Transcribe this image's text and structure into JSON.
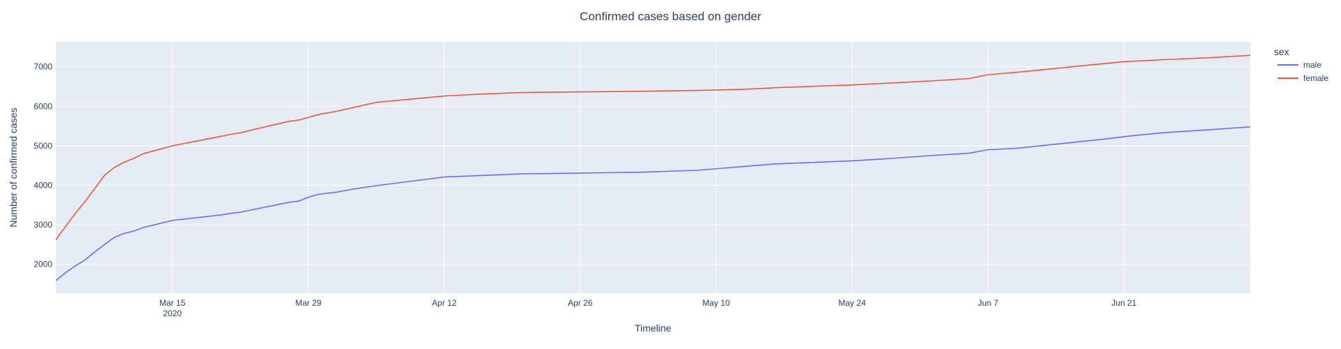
{
  "colors": {
    "plot_bg": "#e5ecf6",
    "grid": "#ffffff",
    "text": "#2a3f5f",
    "male": "#636efa",
    "female": "#ef553b"
  },
  "chart_data": {
    "type": "line",
    "title": "Confirmed cases based on gender",
    "xlabel": "Timeline",
    "ylabel": "Number of confirmed cases",
    "x_axis": {
      "type": "date",
      "range": [
        "2020-03-03",
        "2020-07-04"
      ],
      "ticks": [
        {
          "date": "2020-03-15",
          "label": "Mar 15",
          "sublabel": "2020"
        },
        {
          "date": "2020-03-29",
          "label": "Mar 29",
          "sublabel": ""
        },
        {
          "date": "2020-04-12",
          "label": "Apr 12",
          "sublabel": ""
        },
        {
          "date": "2020-04-26",
          "label": "Apr 26",
          "sublabel": ""
        },
        {
          "date": "2020-05-10",
          "label": "May 10",
          "sublabel": ""
        },
        {
          "date": "2020-05-24",
          "label": "May 24",
          "sublabel": ""
        },
        {
          "date": "2020-06-07",
          "label": "Jun 7",
          "sublabel": ""
        },
        {
          "date": "2020-06-21",
          "label": "Jun 21",
          "sublabel": ""
        }
      ]
    },
    "y_axis": {
      "range": [
        1270,
        7630
      ],
      "ticks": [
        {
          "value": 2000,
          "label": "2000"
        },
        {
          "value": 3000,
          "label": "3000"
        },
        {
          "value": 4000,
          "label": "4000"
        },
        {
          "value": 5000,
          "label": "5000"
        },
        {
          "value": 6000,
          "label": "6000"
        },
        {
          "value": 7000,
          "label": "7000"
        }
      ]
    },
    "grid": true,
    "legend": {
      "title": "sex",
      "position": "top-right"
    },
    "series": [
      {
        "name": "male",
        "x": [
          "2020-03-03",
          "2020-03-04",
          "2020-03-05",
          "2020-03-06",
          "2020-03-07",
          "2020-03-08",
          "2020-03-09",
          "2020-03-10",
          "2020-03-11",
          "2020-03-12",
          "2020-03-15",
          "2020-03-20",
          "2020-03-21",
          "2020-03-22",
          "2020-03-23",
          "2020-03-27",
          "2020-03-28",
          "2020-03-29",
          "2020-03-30",
          "2020-04-01",
          "2020-04-03",
          "2020-04-05",
          "2020-04-12",
          "2020-04-16",
          "2020-04-20",
          "2020-05-02",
          "2020-05-08",
          "2020-05-13",
          "2020-05-16",
          "2020-05-24",
          "2020-05-28",
          "2020-06-01",
          "2020-06-05",
          "2020-06-07",
          "2020-06-10",
          "2020-06-14",
          "2020-06-19",
          "2020-06-21",
          "2020-06-22",
          "2020-06-25",
          "2020-06-30",
          "2020-07-04"
        ],
        "values": [
          1590,
          1790,
          1960,
          2110,
          2310,
          2500,
          2680,
          2780,
          2840,
          2930,
          3110,
          3250,
          3290,
          3320,
          3370,
          3570,
          3600,
          3700,
          3770,
          3830,
          3920,
          3990,
          4210,
          4250,
          4290,
          4330,
          4380,
          4480,
          4540,
          4620,
          4680,
          4750,
          4810,
          4900,
          4940,
          5040,
          5170,
          5230,
          5260,
          5330,
          5410,
          5480
        ]
      },
      {
        "name": "female",
        "x": [
          "2020-03-03",
          "2020-03-04",
          "2020-03-05",
          "2020-03-06",
          "2020-03-07",
          "2020-03-08",
          "2020-03-09",
          "2020-03-10",
          "2020-03-11",
          "2020-03-12",
          "2020-03-15",
          "2020-03-20",
          "2020-03-21",
          "2020-03-22",
          "2020-03-23",
          "2020-03-27",
          "2020-03-28",
          "2020-03-29",
          "2020-03-30",
          "2020-04-01",
          "2020-04-03",
          "2020-04-05",
          "2020-04-12",
          "2020-04-16",
          "2020-04-20",
          "2020-05-02",
          "2020-05-08",
          "2020-05-13",
          "2020-05-16",
          "2020-05-24",
          "2020-05-28",
          "2020-06-01",
          "2020-06-05",
          "2020-06-07",
          "2020-06-10",
          "2020-06-14",
          "2020-06-19",
          "2020-06-21",
          "2020-06-22",
          "2020-06-25",
          "2020-06-30",
          "2020-07-04"
        ],
        "values": [
          2620,
          2960,
          3290,
          3590,
          3920,
          4250,
          4450,
          4580,
          4680,
          4800,
          5000,
          5240,
          5290,
          5330,
          5390,
          5620,
          5650,
          5720,
          5790,
          5880,
          5990,
          6100,
          6260,
          6310,
          6350,
          6380,
          6400,
          6430,
          6470,
          6540,
          6590,
          6640,
          6700,
          6800,
          6860,
          6960,
          7080,
          7130,
          7140,
          7180,
          7230,
          7290
        ]
      }
    ]
  }
}
